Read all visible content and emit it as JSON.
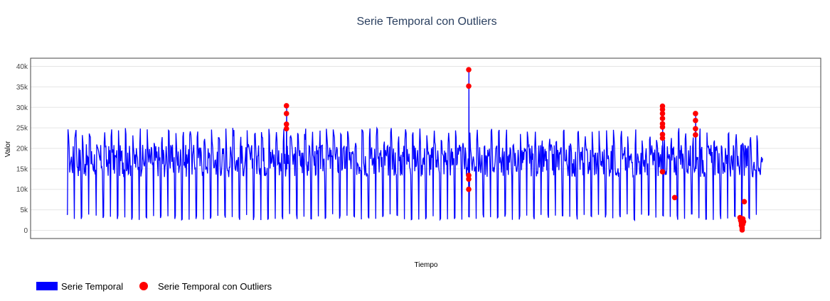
{
  "chart_data": {
    "type": "line",
    "title": "Serie Temporal con Outliers",
    "xlabel": "Tiempo",
    "ylabel": "Valor",
    "ylim": [
      -2000,
      42000
    ],
    "xlim": [
      0,
      1000
    ],
    "yticks": [
      {
        "value": 0,
        "label": "0"
      },
      {
        "value": 5000,
        "label": "5k"
      },
      {
        "value": 10000,
        "label": "10k"
      },
      {
        "value": 15000,
        "label": "15k"
      },
      {
        "value": 20000,
        "label": "20k"
      },
      {
        "value": 25000,
        "label": "25k"
      },
      {
        "value": 30000,
        "label": "30k"
      },
      {
        "value": 35000,
        "label": "35k"
      },
      {
        "value": 40000,
        "label": "40k"
      }
    ],
    "grid": true,
    "legend_position": "bottom-left",
    "series": [
      {
        "name": "Serie Temporal",
        "kind": "line",
        "color": "#0000ff",
        "period_points": 10,
        "amplitude_low": 2500,
        "amplitude_high": 25000,
        "mid_band": [
          13000,
          21000
        ],
        "x_start": 0,
        "x_end": 970,
        "anomalies": [
          {
            "x": 306,
            "values": [
              25000,
              30500
            ]
          },
          {
            "x": 560,
            "values": [
              10000,
              39200
            ]
          },
          {
            "x": 830,
            "values": [
              14000,
              30300
            ]
          },
          {
            "x": 876,
            "values": [
              23000,
              28500
            ]
          },
          {
            "x": 940,
            "values": [
              0,
              7000
            ]
          }
        ]
      },
      {
        "name": "Serie Temporal con Outliers",
        "kind": "scatter",
        "color": "#ff0000",
        "points": [
          {
            "x": 306,
            "y": 30400
          },
          {
            "x": 306,
            "y": 28500
          },
          {
            "x": 306,
            "y": 25900
          },
          {
            "x": 306,
            "y": 24800
          },
          {
            "x": 560,
            "y": 39200
          },
          {
            "x": 560,
            "y": 35200
          },
          {
            "x": 560,
            "y": 13400
          },
          {
            "x": 560,
            "y": 12500
          },
          {
            "x": 560,
            "y": 10000
          },
          {
            "x": 830,
            "y": 30300
          },
          {
            "x": 830,
            "y": 29500
          },
          {
            "x": 830,
            "y": 28500
          },
          {
            "x": 830,
            "y": 27300
          },
          {
            "x": 830,
            "y": 26000
          },
          {
            "x": 830,
            "y": 25200
          },
          {
            "x": 830,
            "y": 23400
          },
          {
            "x": 830,
            "y": 22500
          },
          {
            "x": 830,
            "y": 14300
          },
          {
            "x": 847,
            "y": 8000
          },
          {
            "x": 876,
            "y": 28500
          },
          {
            "x": 876,
            "y": 26800
          },
          {
            "x": 876,
            "y": 24800
          },
          {
            "x": 876,
            "y": 23300
          },
          {
            "x": 938,
            "y": 3100
          },
          {
            "x": 939,
            "y": 2400
          },
          {
            "x": 940,
            "y": 1800
          },
          {
            "x": 940,
            "y": 1200
          },
          {
            "x": 941,
            "y": 600
          },
          {
            "x": 941,
            "y": 100
          },
          {
            "x": 942,
            "y": 2800
          },
          {
            "x": 942,
            "y": 1500
          },
          {
            "x": 943,
            "y": 2100
          },
          {
            "x": 944,
            "y": 7000
          }
        ]
      }
    ]
  }
}
